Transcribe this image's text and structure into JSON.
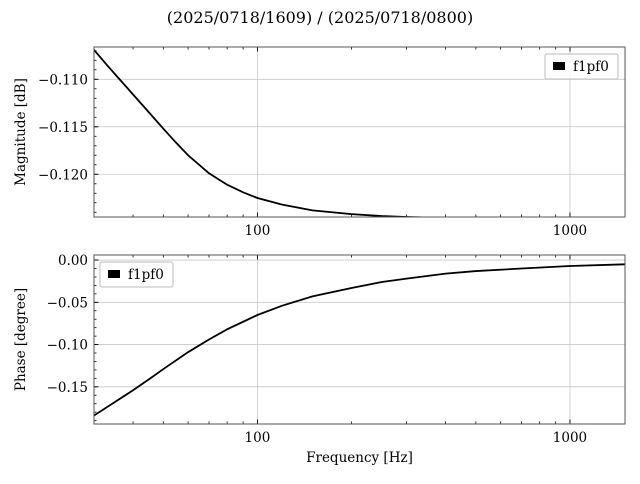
{
  "figure": {
    "title": "(2025/0718/1609) / (2025/0718/0800)"
  },
  "colors": {
    "line": "#000000",
    "grid": "#c8c8c8",
    "frame": "#555555"
  },
  "chart_data": [
    {
      "type": "line",
      "xscale": "log",
      "xlim": [
        30,
        1500
      ],
      "ylim": [
        -0.1245,
        -0.1066
      ],
      "xticks": [
        100,
        1000
      ],
      "xtick_labels": [
        "100",
        "1000"
      ],
      "yticks": [
        -0.11,
        -0.115,
        -0.12
      ],
      "ytick_labels": [
        "−0.110",
        "−0.115",
        "−0.120"
      ],
      "xlabel": "",
      "ylabel": "Magnitude [dB]",
      "grid": true,
      "legend": {
        "position": "upper-right",
        "entries": [
          "f1pf0"
        ]
      },
      "series": [
        {
          "name": "f1pf0",
          "x": [
            30,
            33,
            36,
            40,
            45,
            50,
            55,
            60,
            70,
            80,
            90,
            100,
            120,
            150,
            200,
            250,
            300,
            400,
            500,
            700,
            1000,
            1500
          ],
          "y": [
            -0.1069,
            -0.1085,
            -0.1099,
            -0.1116,
            -0.1135,
            -0.1152,
            -0.1167,
            -0.118,
            -0.1199,
            -0.1211,
            -0.1219,
            -0.1225,
            -0.1232,
            -0.1238,
            -0.1242,
            -0.1244,
            -0.1245,
            -0.1246,
            -0.1247,
            -0.1247,
            -0.1247,
            -0.1247
          ]
        }
      ]
    },
    {
      "type": "line",
      "xscale": "log",
      "xlim": [
        30,
        1500
      ],
      "ylim": [
        -0.194,
        0.006
      ],
      "xticks": [
        100,
        1000
      ],
      "xtick_labels": [
        "100",
        "1000"
      ],
      "yticks": [
        0.0,
        -0.05,
        -0.1,
        -0.15
      ],
      "ytick_labels": [
        "0.00",
        "−0.05",
        "−0.10",
        "−0.15"
      ],
      "xlabel": "Frequency [Hz]",
      "ylabel": "Phase [degree]",
      "grid": true,
      "legend": {
        "position": "upper-left",
        "entries": [
          "f1pf0"
        ]
      },
      "series": [
        {
          "name": "f1pf0",
          "x": [
            30,
            35,
            40,
            45,
            50,
            60,
            70,
            80,
            90,
            100,
            120,
            150,
            200,
            250,
            300,
            400,
            500,
            700,
            1000,
            1500
          ],
          "y": [
            -0.184,
            -0.168,
            -0.154,
            -0.141,
            -0.129,
            -0.109,
            -0.094,
            -0.082,
            -0.073,
            -0.065,
            -0.054,
            -0.043,
            -0.033,
            -0.026,
            -0.022,
            -0.016,
            -0.013,
            -0.01,
            -0.007,
            -0.005
          ]
        }
      ]
    }
  ]
}
